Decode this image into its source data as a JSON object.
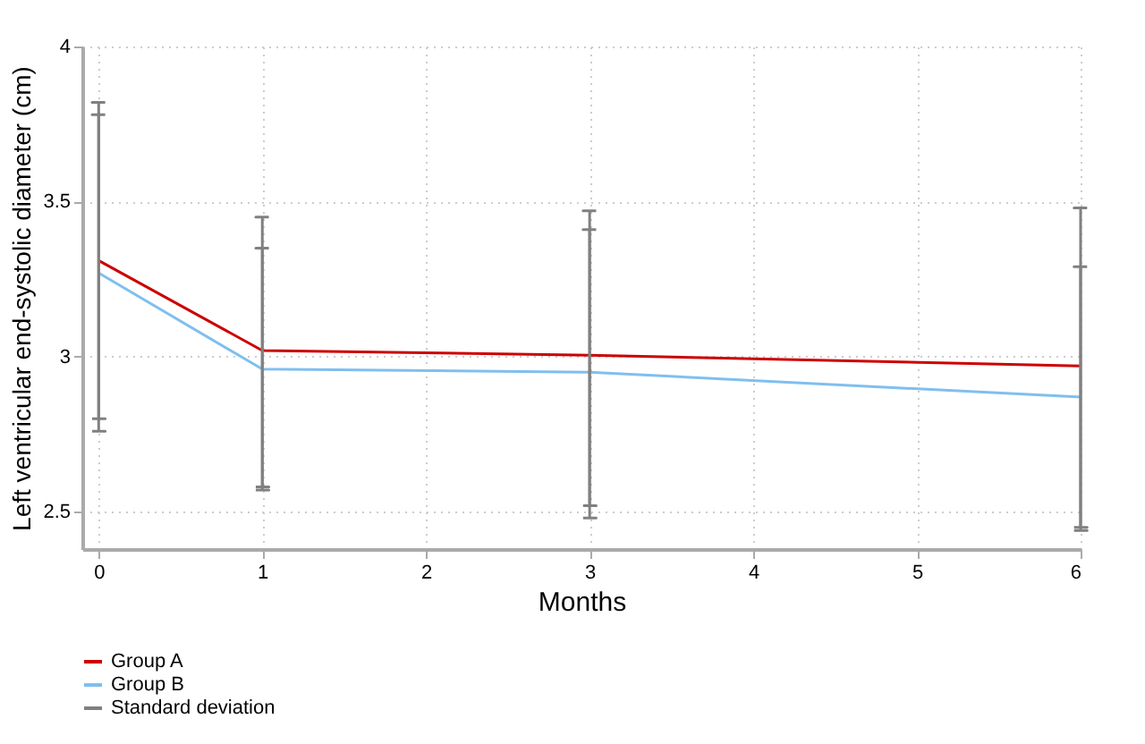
{
  "chart_data": {
    "type": "line",
    "xlabel": "Months",
    "ylabel": "Left ventricular end-systolic diameter (cm)",
    "x": [
      0,
      1,
      3,
      6
    ],
    "series": [
      {
        "name": "Group A",
        "color": "#cc0000",
        "values": [
          3.31,
          3.02,
          3.005,
          2.97
        ],
        "errors": [
          [
            2.8,
            3.82
          ],
          [
            2.58,
            3.45
          ],
          [
            2.52,
            3.47
          ],
          [
            2.45,
            3.48
          ]
        ]
      },
      {
        "name": "Group B",
        "color": "#7fbfef",
        "values": [
          3.27,
          2.96,
          2.95,
          2.87
        ],
        "errors": [
          [
            2.76,
            3.78
          ],
          [
            2.57,
            3.35
          ],
          [
            2.48,
            3.41
          ],
          [
            2.44,
            3.29
          ]
        ]
      }
    ],
    "xlim": [
      -0.1,
      6
    ],
    "xticks": [
      0,
      1,
      2,
      3,
      4,
      5,
      6
    ],
    "ylim": [
      2.38,
      4
    ],
    "yticks": [
      2.5,
      3,
      3.5,
      4
    ],
    "grid": true,
    "legend": "bottom",
    "line_style": "solid",
    "annotations": [
      "Standard deviation"
    ]
  }
}
